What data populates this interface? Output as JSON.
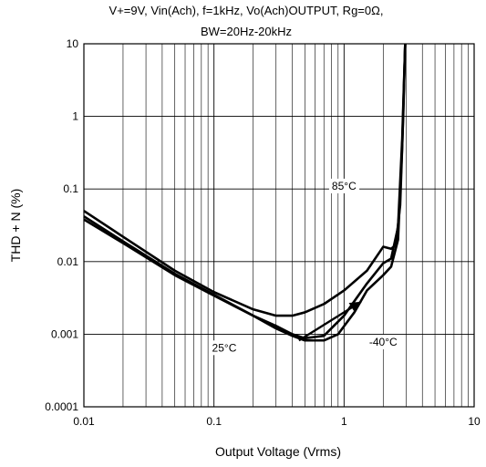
{
  "chart_data": {
    "type": "line",
    "title": "V+=9V, Vin(Ach), f=1kHz, Vo(Ach)OUTPUT, Rg=0Ω,",
    "subtitle": "BW=20Hz-20kHz",
    "xlabel": "Output Voltage (Vrms)",
    "ylabel": "THD + N (%)",
    "x_scale": "log",
    "y_scale": "log",
    "xlim": [
      0.01,
      10
    ],
    "ylim": [
      0.0001,
      10
    ],
    "x_ticks": [
      "0.01",
      "0.1",
      "1",
      "10"
    ],
    "y_ticks": [
      "0.0001",
      "0.001",
      "0.01",
      "0.1",
      "1",
      "10"
    ],
    "grid": true,
    "annotations": [
      {
        "text": "85°C",
        "x": 1.0,
        "y": 0.11
      },
      {
        "text": "25°C",
        "x": 0.12,
        "y": 0.00065
      },
      {
        "text": "-40°C",
        "x": 2.0,
        "y": 0.00078
      }
    ],
    "series": [
      {
        "name": "85°C",
        "points": [
          [
            0.01,
            0.05
          ],
          [
            0.02,
            0.022
          ],
          [
            0.05,
            0.0075
          ],
          [
            0.1,
            0.0038
          ],
          [
            0.2,
            0.0022
          ],
          [
            0.3,
            0.0018
          ],
          [
            0.4,
            0.0018
          ],
          [
            0.5,
            0.002
          ],
          [
            0.7,
            0.0026
          ],
          [
            1.0,
            0.004
          ],
          [
            1.5,
            0.0075
          ],
          [
            2.0,
            0.016
          ],
          [
            2.3,
            0.015
          ],
          [
            2.5,
            0.017
          ],
          [
            2.7,
            0.06
          ],
          [
            2.85,
            1.0
          ],
          [
            2.95,
            10
          ]
        ]
      },
      {
        "name": "25°C",
        "points": [
          [
            0.01,
            0.042
          ],
          [
            0.02,
            0.019
          ],
          [
            0.05,
            0.0068
          ],
          [
            0.1,
            0.0035
          ],
          [
            0.2,
            0.0018
          ],
          [
            0.3,
            0.0013
          ],
          [
            0.4,
            0.001
          ],
          [
            0.5,
            0.00088
          ],
          [
            0.7,
            0.00095
          ],
          [
            1.0,
            0.0018
          ],
          [
            1.5,
            0.005
          ],
          [
            2.0,
            0.0095
          ],
          [
            2.3,
            0.011
          ],
          [
            2.6,
            0.03
          ],
          [
            2.8,
            0.5
          ],
          [
            2.95,
            10
          ]
        ]
      },
      {
        "name": "-40°C",
        "points": [
          [
            0.01,
            0.038
          ],
          [
            0.02,
            0.018
          ],
          [
            0.05,
            0.0065
          ],
          [
            0.1,
            0.0034
          ],
          [
            0.2,
            0.0018
          ],
          [
            0.3,
            0.0012
          ],
          [
            0.4,
            0.00095
          ],
          [
            0.5,
            0.00082
          ],
          [
            0.7,
            0.00082
          ],
          [
            0.9,
            0.001
          ],
          [
            1.2,
            0.002
          ],
          [
            1.5,
            0.004
          ],
          [
            2.0,
            0.0065
          ],
          [
            2.3,
            0.0085
          ],
          [
            2.6,
            0.02
          ],
          [
            2.8,
            0.4
          ],
          [
            2.95,
            10
          ]
        ]
      }
    ],
    "arrow": {
      "from": [
        0.45,
        0.00082
      ],
      "to": [
        1.35,
        0.0028
      ]
    }
  }
}
